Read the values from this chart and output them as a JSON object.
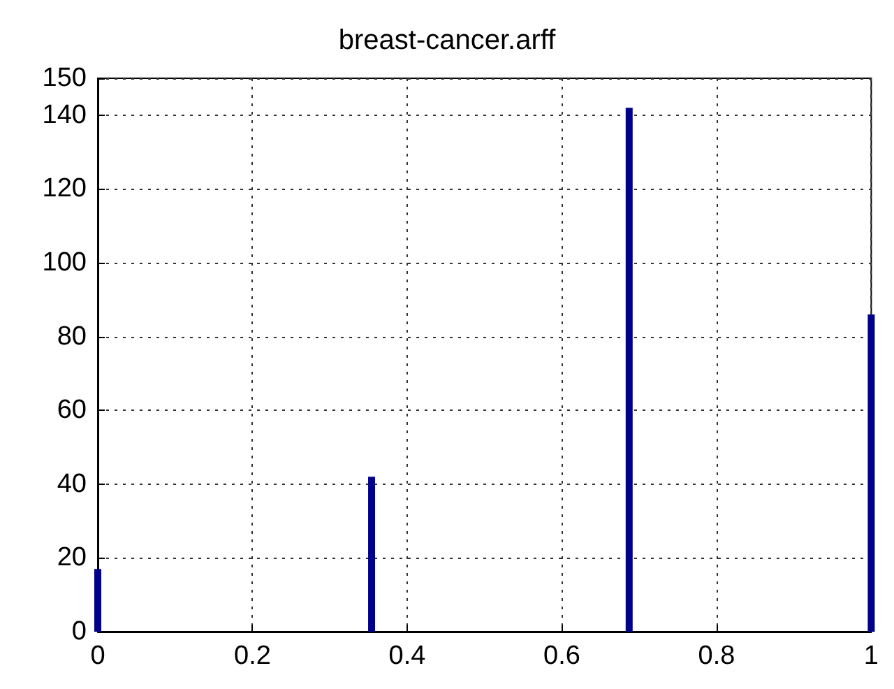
{
  "chart_data": {
    "type": "bar",
    "title": "breast-cancer.arff",
    "x": [
      0,
      0.354,
      0.687,
      1
    ],
    "values": [
      17,
      42,
      142,
      86
    ],
    "color": "#00008b",
    "xlim": [
      0,
      1
    ],
    "xticks": [
      0,
      0.2,
      0.4,
      0.6,
      0.8,
      1
    ],
    "ylim": [
      0,
      150
    ],
    "yticks": [
      0,
      20,
      40,
      60,
      80,
      100,
      120,
      140,
      150
    ],
    "grid": true
  }
}
